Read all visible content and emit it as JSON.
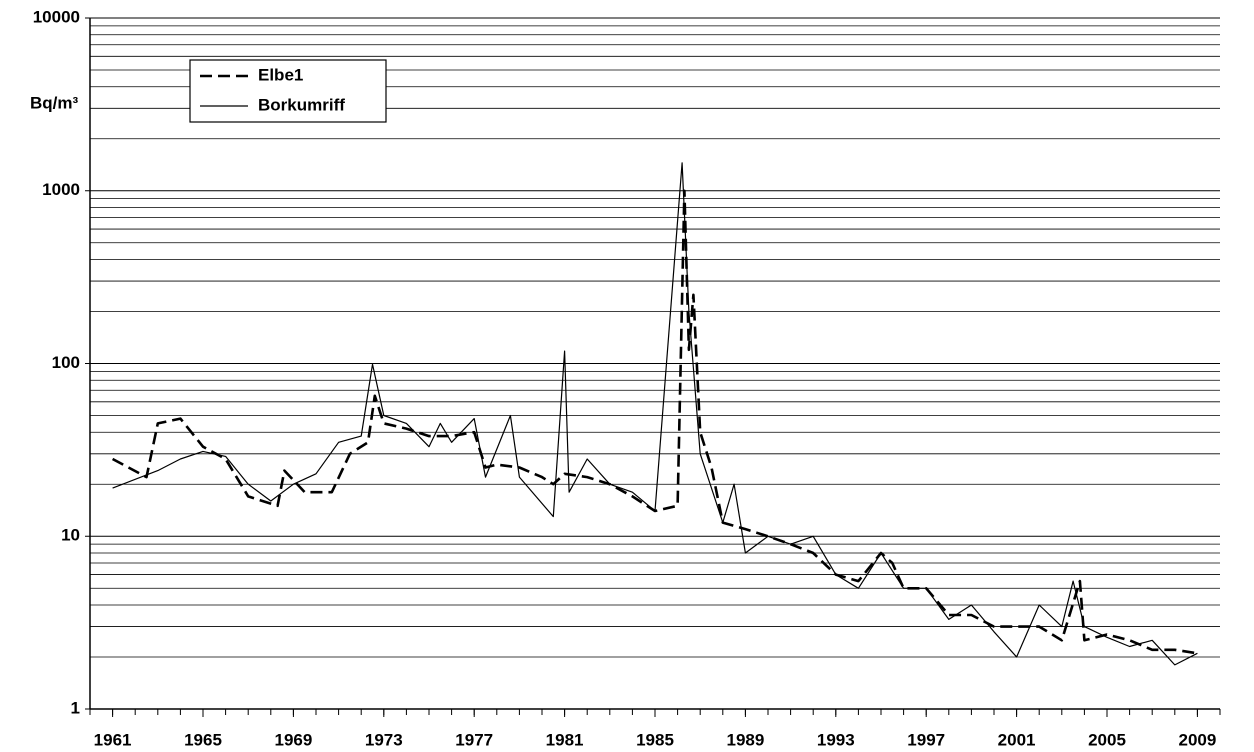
{
  "chart_data": {
    "type": "line",
    "y_label": "Bq/m³",
    "log_scale": true,
    "grid": true,
    "minor_grid": true,
    "legend": "upper left",
    "xlim": [
      1960,
      2010
    ],
    "xticks": [
      1961,
      1965,
      1969,
      1973,
      1977,
      1981,
      1985,
      1989,
      1993,
      1997,
      2001,
      2005,
      2009
    ],
    "ylim": [
      1,
      10000
    ],
    "yticks": [
      1,
      10,
      100,
      1000,
      10000
    ],
    "series": [
      {
        "name": "Elbe1",
        "color": "#000000",
        "dash": true,
        "x": [
          1961,
          1962.5,
          1963,
          1964,
          1965,
          1966,
          1967,
          1968.3,
          1968.6,
          1969.5,
          1970.7,
          1971.5,
          1972.3,
          1972.6,
          1973,
          1974,
          1975,
          1976,
          1977,
          1977.5,
          1978,
          1979,
          1980,
          1980.5,
          1981,
          1982,
          1983,
          1984,
          1985,
          1986,
          1986.3,
          1986.5,
          1986.7,
          1987,
          1987.5,
          1988,
          1989,
          1990,
          1991,
          1992,
          1993,
          1994,
          1995,
          1995.5,
          1996,
          1997,
          1998,
          1999,
          2000,
          2001,
          2002,
          2003,
          2003.8,
          2004,
          2005,
          2006,
          2007,
          2008,
          2009
        ],
        "values": [
          28,
          22,
          45,
          48,
          33,
          28,
          17,
          15,
          24,
          18,
          18,
          30,
          35,
          65,
          45,
          42,
          38,
          38,
          40,
          25,
          26,
          25,
          22,
          20,
          23,
          22,
          20,
          17,
          14,
          15,
          1000,
          120,
          250,
          40,
          25,
          12,
          11,
          10,
          9,
          8,
          6,
          5.5,
          8,
          7,
          5,
          5,
          3.5,
          3.5,
          3,
          3,
          3,
          2.5,
          5.5,
          2.5,
          2.7,
          2.5,
          2.2,
          2.2,
          2.1
        ]
      },
      {
        "name": "Borkumriff",
        "color": "#000000",
        "dash": false,
        "x": [
          1961,
          1963,
          1964,
          1965,
          1966,
          1967,
          1968,
          1969,
          1970,
          1971,
          1972,
          1972.5,
          1973,
          1974,
          1975,
          1975.5,
          1976,
          1977,
          1977.5,
          1978.6,
          1979,
          1980.5,
          1981,
          1981.2,
          1982,
          1983,
          1984,
          1985,
          1986.2,
          1986.5,
          1987,
          1988,
          1988.5,
          1989,
          1990,
          1991,
          1992,
          1993,
          1994,
          1995,
          1996,
          1997,
          1998,
          1999,
          2000,
          2001,
          2002,
          2003,
          2003.5,
          2004,
          2005,
          2006,
          2007,
          2008,
          2009
        ],
        "values": [
          19,
          24,
          28,
          31,
          29,
          20,
          16,
          20,
          23,
          35,
          38,
          99,
          50,
          45,
          33,
          45,
          35,
          48,
          22,
          50,
          22,
          13,
          118,
          18,
          28,
          20,
          18,
          14,
          1450,
          200,
          30,
          12,
          20,
          8,
          10,
          9,
          10,
          6,
          5,
          8,
          5,
          5,
          3.3,
          4,
          2.8,
          2,
          4,
          3,
          5.5,
          3,
          2.6,
          2.3,
          2.5,
          1.8,
          2.1
        ]
      }
    ]
  }
}
